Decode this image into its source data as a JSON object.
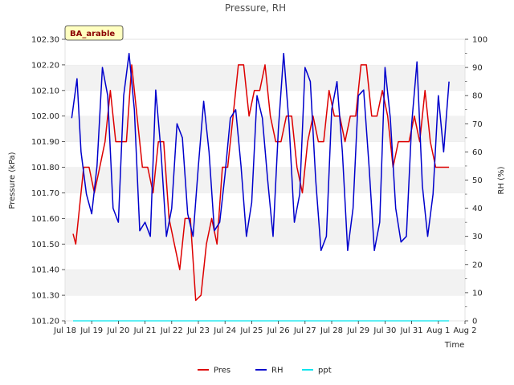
{
  "chart_data": {
    "type": "line",
    "title": "Pressure, RH",
    "badge": "BA_arable",
    "xlabel": "Time",
    "ylabel_left": "Pressure (kPa)",
    "ylabel_right": "RH (%)",
    "ylim_left": [
      101.2,
      102.3
    ],
    "ylim_right": [
      0,
      100
    ],
    "xlim": [
      0,
      15
    ],
    "x_tick_labels": [
      "Jul 18",
      "Jul 19",
      "Jul 20",
      "Jul 21",
      "Jul 22",
      "Jul 23",
      "Jul 24",
      "Jul 25",
      "Jul 26",
      "Jul 27",
      "Jul 28",
      "Jul 29",
      "Jul 30",
      "Jul 31",
      "Aug 1",
      "Aug 2"
    ],
    "y_left_ticks": [
      "101.20",
      "101.30",
      "101.40",
      "101.50",
      "101.60",
      "101.70",
      "101.80",
      "101.90",
      "102.00",
      "102.10",
      "102.20",
      "102.30"
    ],
    "y_right_ticks": [
      "0",
      "10",
      "20",
      "30",
      "40",
      "50",
      "60",
      "70",
      "80",
      "90",
      "100"
    ],
    "grid": "horizontal bands",
    "legend_position": "bottom-center",
    "series": [
      {
        "name": "Pres",
        "axis": "left",
        "color": "#dd0000",
        "x": [
          0.3,
          0.4,
          0.5,
          0.7,
          0.9,
          1.1,
          1.3,
          1.5,
          1.7,
          1.9,
          2.1,
          2.3,
          2.5,
          2.7,
          2.9,
          3.0,
          3.1,
          3.3,
          3.5,
          3.7,
          3.9,
          4.1,
          4.3,
          4.5,
          4.7,
          4.9,
          5.1,
          5.3,
          5.5,
          5.7,
          5.9,
          6.1,
          6.3,
          6.5,
          6.7,
          6.9,
          7.1,
          7.3,
          7.5,
          7.7,
          7.9,
          8.1,
          8.3,
          8.5,
          8.7,
          8.9,
          9.1,
          9.3,
          9.5,
          9.7,
          9.9,
          10.1,
          10.3,
          10.5,
          10.7,
          10.9,
          11.1,
          11.3,
          11.5,
          11.7,
          11.9,
          12.1,
          12.3,
          12.5,
          12.7,
          12.9,
          13.1,
          13.3,
          13.5,
          13.7,
          13.9,
          14.1,
          14.3,
          14.4
        ],
        "y": [
          101.54,
          101.5,
          101.6,
          101.8,
          101.8,
          101.7,
          101.8,
          101.9,
          102.1,
          101.9,
          101.9,
          101.9,
          102.2,
          102.0,
          101.8,
          101.8,
          101.8,
          101.7,
          101.9,
          101.9,
          101.6,
          101.5,
          101.4,
          101.6,
          101.6,
          101.28,
          101.3,
          101.5,
          101.6,
          101.5,
          101.8,
          101.8,
          102.0,
          102.2,
          102.2,
          102.0,
          102.1,
          102.1,
          102.2,
          102.0,
          101.9,
          101.9,
          102.0,
          102.0,
          101.8,
          101.7,
          101.9,
          102.0,
          101.9,
          101.9,
          102.1,
          102.0,
          102.0,
          101.9,
          102.0,
          102.0,
          102.2,
          102.2,
          102.0,
          102.0,
          102.1,
          102.0,
          101.8,
          101.9,
          101.9,
          101.9,
          102.0,
          101.9,
          102.1,
          101.9,
          101.8,
          101.8,
          101.8,
          101.8
        ]
      },
      {
        "name": "RH",
        "axis": "right",
        "color": "#0000cc",
        "x": [
          0.25,
          0.45,
          0.6,
          0.8,
          1.0,
          1.2,
          1.4,
          1.6,
          1.8,
          2.0,
          2.2,
          2.4,
          2.6,
          2.8,
          3.0,
          3.2,
          3.4,
          3.6,
          3.8,
          4.0,
          4.2,
          4.4,
          4.6,
          4.8,
          5.0,
          5.2,
          5.4,
          5.6,
          5.8,
          6.0,
          6.2,
          6.4,
          6.6,
          6.8,
          7.0,
          7.2,
          7.4,
          7.6,
          7.8,
          8.0,
          8.2,
          8.4,
          8.6,
          8.8,
          9.0,
          9.2,
          9.4,
          9.6,
          9.8,
          10.0,
          10.2,
          10.4,
          10.6,
          10.8,
          11.0,
          11.2,
          11.4,
          11.6,
          11.8,
          12.0,
          12.2,
          12.4,
          12.6,
          12.8,
          13.0,
          13.2,
          13.4,
          13.6,
          13.8,
          14.0,
          14.2,
          14.4
        ],
        "y": [
          72,
          86,
          60,
          45,
          38,
          55,
          90,
          80,
          40,
          35,
          80,
          95,
          75,
          32,
          35,
          30,
          82,
          60,
          30,
          40,
          70,
          65,
          38,
          30,
          55,
          78,
          60,
          32,
          35,
          52,
          72,
          75,
          55,
          30,
          42,
          80,
          72,
          50,
          30,
          68,
          95,
          70,
          35,
          45,
          90,
          85,
          50,
          25,
          30,
          75,
          85,
          60,
          25,
          40,
          80,
          82,
          55,
          25,
          35,
          90,
          72,
          40,
          28,
          30,
          70,
          92,
          48,
          30,
          45,
          80,
          60,
          85
        ]
      },
      {
        "name": "ppt",
        "axis": "right",
        "color": "#00e5ee",
        "x": [
          0.3,
          14.4
        ],
        "y": [
          0,
          0
        ]
      }
    ]
  }
}
